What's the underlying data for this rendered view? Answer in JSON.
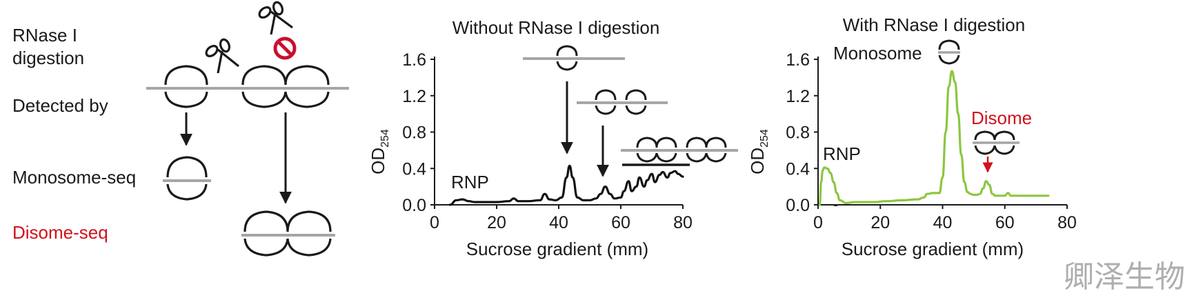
{
  "schematic": {
    "rnase_label_line1": "RNase I",
    "rnase_label_line2": "digestion",
    "detected_label": "Detected by",
    "monosome_seq": "Monosome-seq",
    "disome_seq": "Disome-seq",
    "disome_seq_color": "#d0121b",
    "icons": [
      "scissors-icon",
      "no-entry-icon",
      "ribosome-icon",
      "mrna-line"
    ]
  },
  "chart_data": [
    {
      "type": "line",
      "title": "Without RNase I digestion",
      "xlabel": "Sucrose gradient (mm)",
      "ylabel": "OD",
      "ylabel_sub": "254",
      "xlim": [
        0,
        80
      ],
      "ylim": [
        0,
        1.6
      ],
      "xticks": [
        "0",
        "20",
        "40",
        "60",
        "80"
      ],
      "yticks": [
        "0.0",
        "0.4",
        "0.8",
        "1.2",
        "1.6"
      ],
      "line_color": "#111111",
      "annotations": {
        "rnp": "RNP"
      },
      "series": [
        {
          "name": "OD254",
          "x": [
            5,
            7,
            9,
            11,
            13,
            15,
            20,
            24,
            25.5,
            27,
            30,
            34,
            35.5,
            37,
            39,
            41,
            42.5,
            43.5,
            44.5,
            46,
            48,
            50,
            52,
            53.5,
            55,
            56.5,
            58,
            60,
            61,
            62.5,
            63.5,
            65,
            66,
            67.5,
            68.5,
            70,
            71,
            72.5,
            73.5,
            75,
            76,
            77.5,
            78.5,
            80
          ],
          "y": [
            0.0,
            0.05,
            0.06,
            0.04,
            0.03,
            0.03,
            0.03,
            0.04,
            0.07,
            0.04,
            0.04,
            0.05,
            0.12,
            0.06,
            0.05,
            0.08,
            0.3,
            0.43,
            0.3,
            0.08,
            0.05,
            0.05,
            0.07,
            0.12,
            0.2,
            0.12,
            0.07,
            0.08,
            0.15,
            0.26,
            0.15,
            0.2,
            0.3,
            0.2,
            0.27,
            0.34,
            0.25,
            0.33,
            0.36,
            0.3,
            0.35,
            0.37,
            0.34,
            0.31
          ]
        }
      ]
    },
    {
      "type": "line",
      "title": "With RNase I digestion",
      "xlabel": "Sucrose gradient (mm)",
      "ylabel": "OD",
      "ylabel_sub": "254",
      "xlim": [
        0,
        80
      ],
      "ylim": [
        0,
        1.6
      ],
      "xticks": [
        "0",
        "20",
        "40",
        "60",
        "80"
      ],
      "yticks": [
        "0.0",
        "0.4",
        "0.8",
        "1.2",
        "1.6"
      ],
      "line_color": "#8cc63f",
      "annotations": {
        "rnp": "RNP",
        "monosome": "Monosome",
        "disome": "Disome",
        "disome_color": "#d0121b"
      },
      "series": [
        {
          "name": "OD254",
          "x": [
            0.5,
            1,
            1.5,
            2,
            3,
            4,
            5,
            6,
            7,
            9,
            12,
            18,
            22,
            27,
            32,
            34,
            35,
            37,
            39,
            40,
            41,
            42,
            43,
            44,
            45,
            46,
            47,
            48,
            49,
            50,
            51,
            52,
            53,
            54,
            55,
            56,
            57,
            58,
            60,
            61,
            62,
            66,
            70,
            74
          ],
          "y": [
            0.0,
            0.25,
            0.38,
            0.41,
            0.4,
            0.35,
            0.25,
            0.13,
            0.05,
            0.02,
            0.03,
            0.03,
            0.04,
            0.05,
            0.06,
            0.08,
            0.12,
            0.13,
            0.13,
            0.3,
            0.8,
            1.3,
            1.47,
            1.35,
            1.0,
            0.55,
            0.25,
            0.14,
            0.12,
            0.11,
            0.11,
            0.12,
            0.18,
            0.26,
            0.22,
            0.12,
            0.1,
            0.1,
            0.1,
            0.13,
            0.1,
            0.1,
            0.1,
            0.1
          ]
        }
      ]
    }
  ],
  "watermark": "卿泽生物"
}
